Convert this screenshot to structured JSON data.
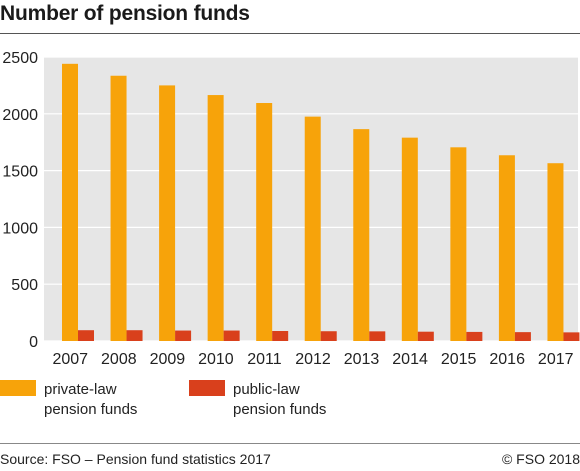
{
  "title": "Number of pension funds",
  "source": "Source: FSO – Pension fund statistics 2017",
  "copyright": "© FSO 2018",
  "colors": {
    "private": "#f7a30a",
    "public": "#d9401c",
    "plot_bg": "#e6e6e6",
    "grid": "#ffffff"
  },
  "legend": {
    "private": {
      "line1": "private-law",
      "line2": "pension funds"
    },
    "public": {
      "line1": "public-law",
      "line2": "pension funds"
    }
  },
  "chart_data": {
    "type": "bar",
    "title": "Number of pension funds",
    "xlabel": "",
    "ylabel": "",
    "categories": [
      "2007",
      "2008",
      "2009",
      "2010",
      "2011",
      "2012",
      "2013",
      "2014",
      "2015",
      "2016",
      "2017"
    ],
    "series": [
      {
        "name": "private-law pension funds",
        "values": [
          2440,
          2335,
          2250,
          2165,
          2095,
          1975,
          1865,
          1790,
          1705,
          1635,
          1565
        ]
      },
      {
        "name": "public-law pension funds",
        "values": [
          95,
          95,
          92,
          92,
          88,
          86,
          85,
          82,
          80,
          78,
          76
        ]
      }
    ],
    "ylim": [
      0,
      2500
    ],
    "yticks": [
      0,
      500,
      1000,
      1500,
      2000,
      2500
    ],
    "grid": true,
    "legend_position": "bottom-left"
  }
}
